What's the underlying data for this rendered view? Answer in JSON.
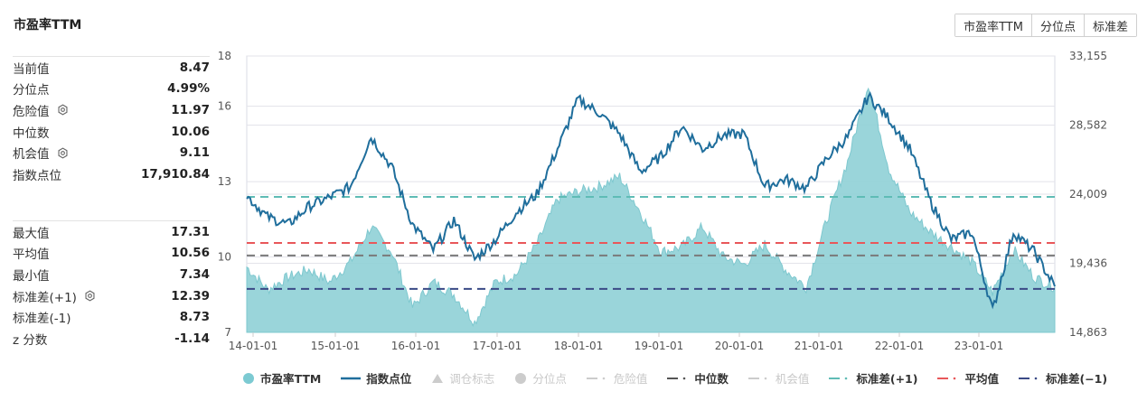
{
  "header": {
    "title": "市盈率TTM"
  },
  "toolbar": {
    "buttons": [
      {
        "label": "市盈率TTM"
      },
      {
        "label": "分位点"
      },
      {
        "label": "标准差"
      }
    ]
  },
  "stats_top": [
    {
      "label": "当前值",
      "value": "8.47",
      "gear": false
    },
    {
      "label": "分位点",
      "value": "4.99%",
      "gear": false
    },
    {
      "label": "危险值",
      "value": "11.97",
      "gear": true
    },
    {
      "label": "中位数",
      "value": "10.06",
      "gear": false
    },
    {
      "label": "机会值",
      "value": "9.11",
      "gear": true
    },
    {
      "label": "指数点位",
      "value": "17,910.84",
      "gear": false
    }
  ],
  "stats_bottom": [
    {
      "label": "最大值",
      "value": "17.31",
      "gear": false
    },
    {
      "label": "平均值",
      "value": "10.56",
      "gear": false
    },
    {
      "label": "最小值",
      "value": "7.34",
      "gear": false
    },
    {
      "label": "标准差(+1)",
      "value": "12.39",
      "gear": true
    },
    {
      "label": "标准差(-1)",
      "value": "8.73",
      "gear": false
    },
    {
      "label": "z 分数",
      "value": "-1.14",
      "gear": false
    }
  ],
  "colors": {
    "pe_area": "#8fd0d6",
    "index_line": "#1f6e9c",
    "std_plus": "#5fbcb5",
    "mean": "#e8575a",
    "median": "#7a7a7a",
    "std_minus": "#3a4a86",
    "grid": "#e3e3ea"
  },
  "chart_data": {
    "type": "line",
    "title": "市盈率TTM",
    "xlabel": "",
    "ylabel_left": "市盈率TTM",
    "ylabel_right": "指数点位",
    "x_ticks": [
      "14-01-01",
      "15-01-01",
      "16-01-01",
      "17-01-01",
      "18-01-01",
      "19-01-01",
      "20-01-01",
      "21-01-01",
      "22-01-01",
      "23-01-01"
    ],
    "y_left_ticks": [
      7,
      10,
      13,
      16,
      18
    ],
    "y_right_ticks": [
      "14,863",
      "19,436",
      "24,009",
      "28,582",
      "33,155"
    ],
    "ylim_left": [
      7,
      18
    ],
    "ylim_right": [
      14863,
      33155
    ],
    "grid": true,
    "legend_position": "bottom",
    "x": [
      "14-01",
      "14-04",
      "14-07",
      "14-10",
      "15-01",
      "15-04",
      "15-07",
      "15-10",
      "16-01",
      "16-04",
      "16-07",
      "16-10",
      "17-01",
      "17-04",
      "17-07",
      "17-10",
      "18-01",
      "18-04",
      "18-07",
      "18-10",
      "19-01",
      "19-04",
      "19-07",
      "19-10",
      "20-01",
      "20-04",
      "20-07",
      "20-10",
      "21-01",
      "21-04",
      "21-07",
      "21-10",
      "22-01",
      "22-04",
      "22-07",
      "22-10",
      "23-01",
      "23-04",
      "23-07",
      "23-10"
    ],
    "series": [
      {
        "name": "市盈率TTM",
        "type": "area",
        "values": [
          9.6,
          8.7,
          9.2,
          9.5,
          9.0,
          9.8,
          11.2,
          10.2,
          8.0,
          9.0,
          8.5,
          7.4,
          9.0,
          9.3,
          10.5,
          12.3,
          12.6,
          12.8,
          13.2,
          11.8,
          10.2,
          10.4,
          11.2,
          10.0,
          9.7,
          10.5,
          9.5,
          8.8,
          11.5,
          13.8,
          16.9,
          13.5,
          11.8,
          11.0,
          10.4,
          9.8,
          8.6,
          10.3,
          9.2,
          8.8
        ]
      },
      {
        "name": "指数点位",
        "type": "line",
        "values": [
          23900,
          22500,
          22000,
          23200,
          23800,
          24500,
          27800,
          25800,
          22000,
          20300,
          22300,
          19700,
          21000,
          22800,
          24000,
          27000,
          30300,
          29400,
          28000,
          25500,
          26500,
          28500,
          27000,
          27900,
          28000,
          24500,
          25000,
          24400,
          26400,
          27800,
          30500,
          29000,
          27000,
          23500,
          21000,
          21500,
          16300,
          21500,
          20200,
          17900
        ]
      },
      {
        "name": "调仓标志",
        "type": "scatter",
        "values": [],
        "visible": false
      },
      {
        "name": "分位点",
        "type": "line",
        "values": [],
        "visible": false
      },
      {
        "name": "危险值",
        "type": "hline",
        "value": 11.97,
        "visible": false
      },
      {
        "name": "中位数",
        "type": "hline",
        "value": 10.06
      },
      {
        "name": "机会值",
        "type": "hline",
        "value": 9.11,
        "visible": false
      },
      {
        "name": "标准差(+1)",
        "type": "hline",
        "value": 12.39
      },
      {
        "name": "平均值",
        "type": "hline",
        "value": 10.56
      },
      {
        "name": "标准差(-1)",
        "type": "hline",
        "value": 8.73
      }
    ]
  },
  "legend": [
    {
      "label": "市盈率TTM",
      "state": "on",
      "swatch": "circle",
      "color": "#7ccad2"
    },
    {
      "label": "指数点位",
      "state": "on",
      "swatch": "line",
      "color": "#1f6e9c"
    },
    {
      "label": "调仓标志",
      "state": "off",
      "swatch": "triangle",
      "color": "#cccccc"
    },
    {
      "label": "分位点",
      "state": "off",
      "swatch": "circle",
      "color": "#cccccc"
    },
    {
      "label": "危险值",
      "state": "off",
      "swatch": "dash",
      "color": "#cccccc"
    },
    {
      "label": "中位数",
      "state": "on",
      "swatch": "dash",
      "color": "#555555"
    },
    {
      "label": "机会值",
      "state": "off",
      "swatch": "dash",
      "color": "#cccccc"
    },
    {
      "label": "标准差(+1)",
      "state": "on",
      "swatch": "dash",
      "color": "#5fbcb5"
    },
    {
      "label": "平均值",
      "state": "on",
      "swatch": "dash",
      "color": "#e8575a"
    },
    {
      "label": "标准差(−1)",
      "state": "on",
      "swatch": "dash",
      "color": "#3a4a86"
    }
  ]
}
